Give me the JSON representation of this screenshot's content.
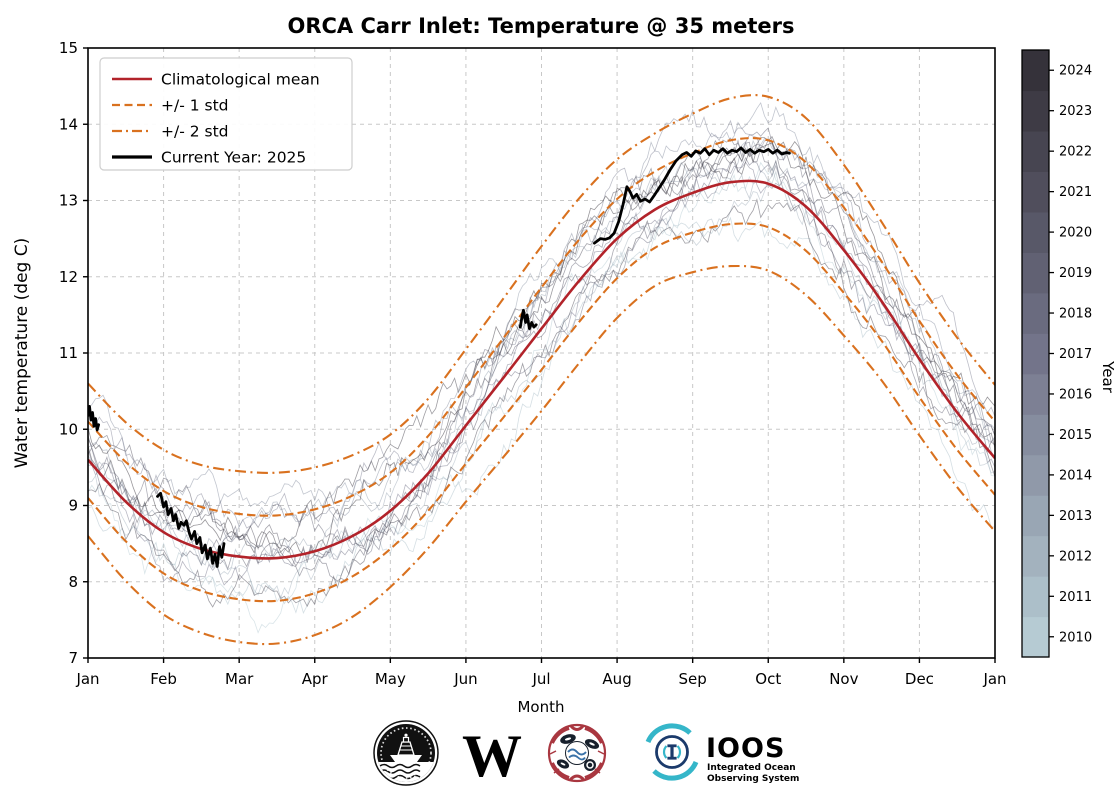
{
  "figure": {
    "title": "ORCA Carr Inlet: Temperature @ 35 meters"
  },
  "chart_data": {
    "type": "line",
    "title": "ORCA Carr Inlet: Temperature @ 35 meters",
    "xlabel": "Month",
    "ylabel": "Water temperature (deg C)",
    "ylim": [
      7,
      15
    ],
    "y_ticks": [
      7,
      8,
      9,
      10,
      11,
      12,
      13,
      14,
      15
    ],
    "x_ticks": [
      "Jan",
      "Feb",
      "Mar",
      "Apr",
      "May",
      "Jun",
      "Jul",
      "Aug",
      "Sep",
      "Oct",
      "Nov",
      "Dec",
      "Jan"
    ],
    "grid": true,
    "legend": {
      "position": "upper left",
      "entries": [
        {
          "label": "Climatological mean",
          "color": "#b2232a",
          "style": "solid",
          "width": 2.4
        },
        {
          "label": "+/- 1 std",
          "color": "#d9711f",
          "style": "dashed",
          "width": 2.2
        },
        {
          "label": "+/- 2 std",
          "color": "#d9711f",
          "style": "dashdot",
          "width": 2.2
        },
        {
          "label": "Current Year: 2025",
          "color": "#000000",
          "style": "solid",
          "width": 3.2
        }
      ]
    },
    "months": [
      0,
      0.5,
      1,
      1.5,
      2,
      2.5,
      3,
      3.5,
      4,
      4.5,
      5,
      5.5,
      6,
      6.5,
      7,
      7.5,
      8,
      8.5,
      9,
      9.5,
      10,
      10.5,
      11,
      11.5,
      12
    ],
    "climatological_mean": [
      9.6,
      9.05,
      8.65,
      8.43,
      8.33,
      8.31,
      8.4,
      8.6,
      8.93,
      9.42,
      10.05,
      10.68,
      11.32,
      11.95,
      12.5,
      12.88,
      13.1,
      13.24,
      13.22,
      12.92,
      12.35,
      11.68,
      10.92,
      10.22,
      9.62
    ],
    "std": [
      0.5,
      0.52,
      0.54,
      0.55,
      0.56,
      0.56,
      0.55,
      0.53,
      0.5,
      0.49,
      0.5,
      0.52,
      0.54,
      0.54,
      0.52,
      0.5,
      0.52,
      0.55,
      0.57,
      0.58,
      0.56,
      0.52,
      0.5,
      0.49,
      0.48
    ],
    "band_curves": [
      "mean+1std",
      "mean-1std",
      "mean+2std",
      "mean-2std"
    ],
    "current_year": {
      "label": "Current Year: 2025",
      "year": 2025,
      "segments": [
        [
          [
            0.0,
            10.18
          ],
          [
            0.02,
            10.3
          ],
          [
            0.04,
            10.12
          ],
          [
            0.06,
            10.22
          ],
          [
            0.08,
            10.04
          ],
          [
            0.1,
            10.14
          ],
          [
            0.12,
            9.99
          ],
          [
            0.14,
            10.06
          ]
        ],
        [
          [
            0.92,
            9.12
          ],
          [
            0.96,
            9.16
          ],
          [
            1.0,
            8.98
          ],
          [
            1.03,
            9.05
          ],
          [
            1.06,
            8.88
          ],
          [
            1.1,
            8.96
          ],
          [
            1.13,
            8.8
          ],
          [
            1.16,
            8.88
          ],
          [
            1.2,
            8.7
          ],
          [
            1.23,
            8.78
          ],
          [
            1.27,
            8.74
          ],
          [
            1.3,
            8.8
          ],
          [
            1.34,
            8.64
          ],
          [
            1.37,
            8.56
          ],
          [
            1.41,
            8.66
          ],
          [
            1.44,
            8.5
          ],
          [
            1.48,
            8.58
          ],
          [
            1.51,
            8.38
          ],
          [
            1.55,
            8.48
          ],
          [
            1.58,
            8.3
          ],
          [
            1.62,
            8.44
          ],
          [
            1.65,
            8.24
          ],
          [
            1.68,
            8.36
          ],
          [
            1.71,
            8.2
          ],
          [
            1.74,
            8.46
          ],
          [
            1.77,
            8.32
          ],
          [
            1.8,
            8.5
          ]
        ],
        [
          [
            5.72,
            11.34
          ],
          [
            5.74,
            11.46
          ],
          [
            5.76,
            11.56
          ],
          [
            5.79,
            11.4
          ],
          [
            5.81,
            11.5
          ],
          [
            5.84,
            11.32
          ],
          [
            5.87,
            11.4
          ],
          [
            5.9,
            11.34
          ],
          [
            5.93,
            11.37
          ]
        ],
        [
          [
            6.7,
            12.44
          ],
          [
            6.74,
            12.47
          ],
          [
            6.78,
            12.5
          ],
          [
            6.84,
            12.49
          ],
          [
            6.9,
            12.51
          ],
          [
            6.96,
            12.57
          ],
          [
            7.02,
            12.72
          ],
          [
            7.08,
            12.95
          ],
          [
            7.13,
            13.18
          ],
          [
            7.17,
            13.12
          ],
          [
            7.21,
            13.03
          ],
          [
            7.26,
            13.08
          ],
          [
            7.31,
            12.99
          ],
          [
            7.37,
            13.02
          ],
          [
            7.43,
            12.98
          ],
          [
            7.5,
            13.08
          ],
          [
            7.56,
            13.17
          ],
          [
            7.62,
            13.26
          ],
          [
            7.7,
            13.4
          ],
          [
            7.78,
            13.52
          ],
          [
            7.86,
            13.6
          ],
          [
            7.92,
            13.63
          ],
          [
            7.98,
            13.58
          ],
          [
            8.04,
            13.65
          ],
          [
            8.1,
            13.62
          ],
          [
            8.16,
            13.68
          ],
          [
            8.22,
            13.6
          ],
          [
            8.28,
            13.66
          ],
          [
            8.34,
            13.63
          ],
          [
            8.4,
            13.68
          ],
          [
            8.46,
            13.62
          ],
          [
            8.52,
            13.66
          ],
          [
            8.58,
            13.64
          ],
          [
            8.64,
            13.69
          ],
          [
            8.7,
            13.63
          ],
          [
            8.76,
            13.67
          ],
          [
            8.82,
            13.62
          ],
          [
            8.88,
            13.66
          ],
          [
            8.94,
            13.64
          ],
          [
            9.0,
            13.67
          ],
          [
            9.06,
            13.62
          ],
          [
            9.12,
            13.66
          ],
          [
            9.18,
            13.61
          ],
          [
            9.24,
            13.63
          ],
          [
            9.28,
            13.62
          ]
        ]
      ]
    },
    "historical": {
      "first_year": 2010,
      "last_year": 2024,
      "offsets_std_units": [
        -0.6,
        -1.2,
        -0.4,
        0.3,
        0.5,
        1.2,
        1.0,
        -0.2,
        0.2,
        0.4,
        0.1,
        0.3,
        -0.8,
        0.6,
        0.9
      ],
      "noise_seed": 20251
    },
    "colorbar": {
      "label": "Year",
      "tick_years": [
        2010,
        2011,
        2012,
        2013,
        2014,
        2015,
        2016,
        2017,
        2018,
        2019,
        2020,
        2021,
        2022,
        2023,
        2024
      ]
    },
    "colors": {
      "mean": "#b2232a",
      "std_band": "#d9711f",
      "current": "#000000",
      "grid": "#c8c8c8",
      "spine": "#000000",
      "colormap_stops": [
        "#b6cbd3",
        "#73748a",
        "#35323a"
      ]
    }
  },
  "footer": {
    "logos": {
      "orca": {
        "name": "orca-buoy-logo"
      },
      "uw": {
        "letter": "W",
        "color": "#39277d"
      },
      "nanoos": {
        "name": "nanoos-logo",
        "red": "#a93740"
      },
      "ioos": {
        "title": "IOOS",
        "subtitle_line1": "Integrated Ocean",
        "subtitle_line2": "Observing System",
        "navy": "#1b3a6b",
        "teal": "#35b6c9"
      }
    }
  }
}
